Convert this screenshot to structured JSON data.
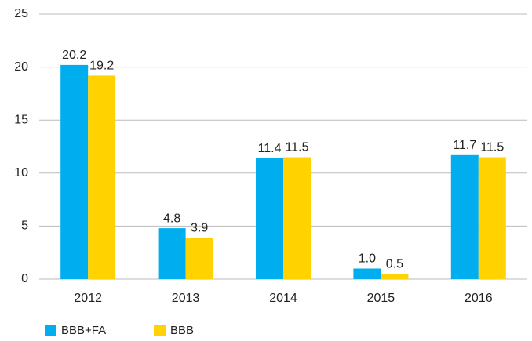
{
  "chart_data": {
    "type": "bar",
    "categories": [
      "2012",
      "2013",
      "2014",
      "2015",
      "2016"
    ],
    "series": [
      {
        "name": "BBB+FA",
        "color": "#00aeef",
        "values": [
          20.2,
          4.8,
          11.4,
          1.0,
          11.7
        ],
        "value_labels": [
          "20.2",
          "4.8",
          "11.4",
          "1.0",
          "11.7"
        ]
      },
      {
        "name": "BBB",
        "color": "#ffd200",
        "values": [
          19.2,
          3.9,
          11.5,
          0.5,
          11.5
        ],
        "value_labels": [
          "19.2",
          "3.9",
          "11.5",
          "0.5",
          "11.5"
        ]
      }
    ],
    "ylim": [
      0,
      25
    ],
    "yticks": [
      0,
      5,
      10,
      15,
      20,
      25
    ],
    "grid": true,
    "legend": "bottom-left"
  }
}
